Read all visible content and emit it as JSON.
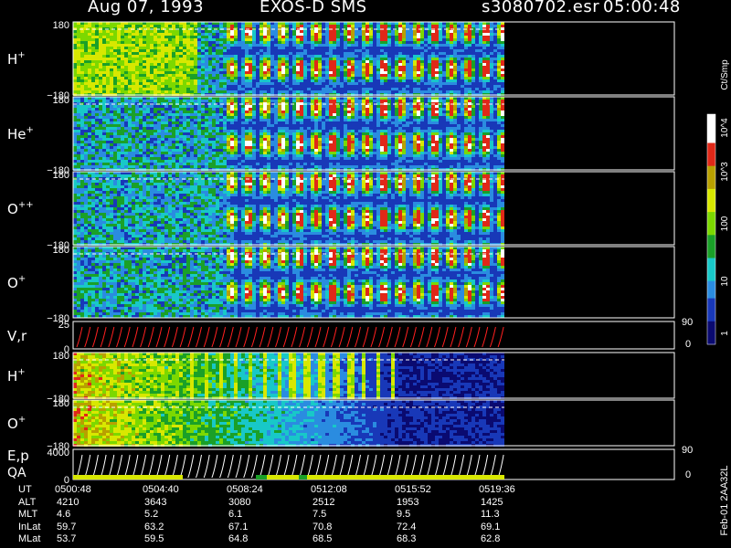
{
  "header": {
    "date": "Aug 07, 1993",
    "instrument": "EXOS-D SMS",
    "filename": "s3080702.esr",
    "time": "05:00:48"
  },
  "colorbar": {
    "unit": "Ct/Smp",
    "tick_labels": [
      "10^4",
      "10^3",
      "100",
      "10",
      "1"
    ],
    "tick_values": [
      10000,
      1000,
      100,
      10,
      1
    ]
  },
  "panels": [
    {
      "label": "H",
      "charge": "+",
      "ymax": "180",
      "ymin": "−180"
    },
    {
      "label": "He",
      "charge": "+",
      "ymax": "180",
      "ymin": "−180"
    },
    {
      "label": "O",
      "charge": "++",
      "ymax": "180",
      "ymin": "−180"
    },
    {
      "label": "O",
      "charge": "+",
      "ymax": "180",
      "ymin": "−180"
    },
    {
      "label": "V,r",
      "charge": "",
      "ymax": "25",
      "ymin": "0",
      "right_max": "90",
      "right_min": "0"
    },
    {
      "label": "H",
      "charge": "+",
      "ymax": "180",
      "ymin": "−180"
    },
    {
      "label": "O",
      "charge": "+",
      "ymax": "180",
      "ymin": "−180"
    },
    {
      "label": "E,p",
      "label2": "QA",
      "charge": "",
      "ymax": "4000",
      "ymin": "0",
      "right_max": "90",
      "right_min": "0"
    }
  ],
  "footer_vertical": "Feb-01 2AA32L",
  "ephemeris": {
    "rows": [
      {
        "name": "UT",
        "values": [
          "0500:48",
          "0504:40",
          "0508:24",
          "0512:08",
          "0515:52",
          "0519:36"
        ]
      },
      {
        "name": "ALT",
        "values": [
          "4210",
          "3643",
          "3080",
          "2512",
          "1953",
          "1425"
        ]
      },
      {
        "name": "MLT",
        "values": [
          "4.6",
          "5.2",
          "6.1",
          "7.5",
          "9.5",
          "11.3"
        ]
      },
      {
        "name": "InLat",
        "values": [
          "59.7",
          "63.2",
          "67.1",
          "70.8",
          "72.4",
          "69.1"
        ]
      },
      {
        "name": "MLat",
        "values": [
          "53.7",
          "59.5",
          "64.8",
          "68.5",
          "68.3",
          "62.8"
        ]
      }
    ]
  },
  "chart_data": {
    "type": "heatmap",
    "x_label": "UT",
    "x_ticks": [
      "0500:48",
      "0504:40",
      "0508:24",
      "0512:08",
      "0515:52",
      "0519:36"
    ],
    "color_scale": "log",
    "color_range": [
      1,
      10000
    ],
    "colors": [
      "#0a0a70",
      "#1838b8",
      "#2a8ce0",
      "#18c8c8",
      "#1aa028",
      "#7cd800",
      "#d8e800",
      "#b8a000",
      "#e02818",
      "#ffffff"
    ]
  }
}
